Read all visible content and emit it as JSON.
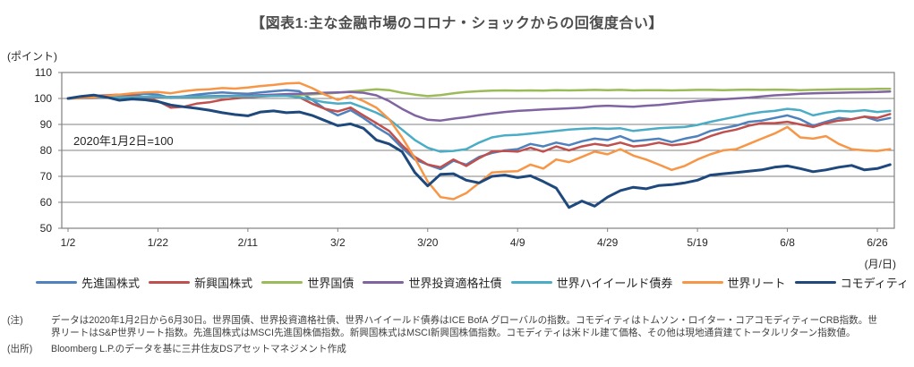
{
  "title": "【図表1:主な金融市場のコロナ・ショックからの回復度合い】",
  "notes": {
    "note_label": "(注)",
    "note_line1": "データは2020年1月2日から6月30日。世界国債、世界投資適格社債、世界ハイイールド債券はICE BofA グローバルの指数。コモディティはトムソン・ロイター・コアコモディティーCRB指数。世",
    "note_line2": "界リートはS&P世界リート指数。先進国株式はMSCI先進国株価指数。新興国株式はMSCI新興国株価指数。コモディティは米ドル建て価格、その他は現地通貨建てトータルリターン指数値。",
    "source_label": "(出所)",
    "source_text": "Bloomberg L.P.のデータを基に三井住友DSアセットマネジメント作成"
  },
  "colors": {
    "grid": "#808080",
    "axis": "#808080",
    "tick_text": "#262626"
  },
  "chart_data": {
    "type": "line",
    "title": "主な金融市場のコロナ・ショックからの回復度合い",
    "annotation": "2020年1月2日=100",
    "y_axis_label": "(ポイント)",
    "x_axis_label": "(月/日)",
    "ylim": [
      50,
      110
    ],
    "y_ticks": [
      50,
      60,
      70,
      80,
      90,
      100,
      110
    ],
    "grid": "horizontal",
    "legend_position": "bottom",
    "x_ticks": [
      "1/2",
      "1/22",
      "2/11",
      "3/2",
      "3/20",
      "4/9",
      "4/29",
      "5/19",
      "6/8",
      "6/26"
    ],
    "x_tick_days": [
      0,
      14,
      28,
      42,
      56,
      70,
      84,
      98,
      112,
      126
    ],
    "x_day_max": 128,
    "sample_step_days": 2,
    "series": [
      {
        "name": "先進国株式",
        "color": "#4F81BD",
        "values": [
          100,
          100.3,
          100.8,
          101,
          101.2,
          101.5,
          101.8,
          101.5,
          100.2,
          100.8,
          101.5,
          102,
          102.3,
          102,
          101.8,
          102.3,
          102.8,
          103.2,
          102.8,
          99.5,
          96,
          93.5,
          95.5,
          92.5,
          89,
          86,
          81,
          76.5,
          74.5,
          72.8,
          76,
          74.5,
          77.5,
          79,
          80,
          80.5,
          82.5,
          81.5,
          83,
          82,
          83.5,
          84.5,
          84,
          85.5,
          83.5,
          84,
          84.5,
          83.2,
          84.5,
          85.5,
          87.5,
          88.5,
          89.5,
          91,
          91.5,
          92.5,
          93.5,
          92,
          89.5,
          91,
          92.5,
          92,
          93,
          91.5,
          92.5
        ]
      },
      {
        "name": "新興国株式",
        "color": "#C0504D",
        "values": [
          100,
          100.5,
          101,
          101.2,
          101.5,
          101.3,
          100.5,
          99,
          96.5,
          96.8,
          98,
          98.5,
          99.5,
          100,
          100.5,
          100.8,
          101,
          101.2,
          100.5,
          98,
          96,
          95,
          96.5,
          93.5,
          90.5,
          87.5,
          82,
          77.5,
          74.5,
          73.5,
          76.5,
          74,
          77,
          79.5,
          79.8,
          79.5,
          81,
          79.5,
          81.5,
          80,
          81.5,
          82.5,
          81.8,
          83,
          81.5,
          82,
          83,
          82,
          82.5,
          83.5,
          85.5,
          87,
          88,
          89.5,
          90.5,
          90.5,
          91,
          90,
          89,
          90.5,
          91.5,
          92,
          93,
          92.5,
          94
        ]
      },
      {
        "name": "世界国債",
        "color": "#9BBB59",
        "values": [
          100,
          100.1,
          100.2,
          100.2,
          100.3,
          100.3,
          100.4,
          100.3,
          100.5,
          100.6,
          100.6,
          100.7,
          100.8,
          100.8,
          100.8,
          101,
          101.1,
          101.2,
          101.3,
          101.6,
          101.9,
          102.2,
          102.7,
          103.1,
          103.5,
          103.2,
          102.2,
          101.5,
          100.9,
          101.3,
          102,
          102.5,
          102.8,
          103,
          103.1,
          103,
          103.1,
          103,
          103.2,
          103.1,
          103.2,
          103.3,
          103.2,
          103.3,
          103.1,
          103.2,
          103.2,
          103.1,
          103.2,
          103.3,
          103.3,
          103.2,
          103.3,
          103.4,
          103.3,
          103.4,
          103.3,
          103.2,
          103.3,
          103.4,
          103.5,
          103.6,
          103.6,
          103.7,
          103.7
        ]
      },
      {
        "name": "世界投資適格社債",
        "color": "#8064A2",
        "values": [
          100,
          100.1,
          100.2,
          100.3,
          100.4,
          100.4,
          100.5,
          100.5,
          100.6,
          100.7,
          100.8,
          100.9,
          101,
          101,
          101.1,
          101.3,
          101.5,
          101.7,
          101.8,
          102,
          102.2,
          102.3,
          102.5,
          102.2,
          101.2,
          99,
          96,
          93.5,
          91.8,
          91.5,
          92.2,
          92.8,
          93.6,
          94.2,
          94.8,
          95.2,
          95.5,
          95.8,
          96,
          96.2,
          96.5,
          97,
          97.2,
          97,
          96.8,
          97.2,
          97.5,
          98,
          98.5,
          99,
          99.3,
          99.7,
          100,
          100.3,
          100.8,
          101.2,
          101.5,
          101.8,
          102,
          102.1,
          102.2,
          102.3,
          102.4,
          102.5,
          102.7
        ]
      },
      {
        "name": "世界ハイイールド債券",
        "color": "#4BACC6",
        "values": [
          100,
          100.2,
          100.4,
          100.5,
          100.5,
          100.6,
          100.7,
          100.8,
          100.5,
          100.6,
          100.7,
          100.8,
          100.8,
          100.9,
          100.8,
          100.9,
          101,
          101,
          100.5,
          99.5,
          98.5,
          98,
          98.3,
          96.5,
          94.5,
          92,
          88,
          84,
          81,
          79.5,
          79.8,
          80.5,
          83,
          85,
          85.8,
          86,
          86.5,
          87,
          87.5,
          88,
          88.3,
          88.5,
          88.3,
          88.5,
          87.5,
          88,
          88.5,
          88.8,
          89,
          89.8,
          91,
          92,
          93,
          94,
          94.8,
          95.2,
          96,
          95.5,
          93.5,
          94.5,
          95.2,
          95,
          95.5,
          94.8,
          95.2
        ]
      },
      {
        "name": "世界リート",
        "color": "#F79646",
        "values": [
          100,
          100.2,
          100.5,
          101,
          101.5,
          102,
          102.3,
          102.5,
          102,
          102.8,
          103.3,
          103.5,
          104,
          103.8,
          104.2,
          104.8,
          105.2,
          105.8,
          106,
          104,
          101.5,
          99.5,
          101,
          99,
          96.5,
          92,
          85,
          77,
          68,
          62,
          61.2,
          63.5,
          67.5,
          71.5,
          71.8,
          72,
          74.5,
          73,
          76.5,
          75.5,
          77.5,
          79.5,
          78.5,
          80.5,
          78,
          76.5,
          74.5,
          72.5,
          74,
          76.5,
          78.5,
          80,
          80.5,
          82.5,
          84.5,
          86.5,
          89,
          85,
          84.5,
          85.5,
          82.5,
          80.5,
          80,
          79.8,
          80.5
        ]
      },
      {
        "name": "コモディティ",
        "color": "#1F497D",
        "values": [
          100,
          100.8,
          101.3,
          100.5,
          99.3,
          99.8,
          99.5,
          98.8,
          97.5,
          96.8,
          96.2,
          95.5,
          94.5,
          93.8,
          93.3,
          94.8,
          95.2,
          94.5,
          94.8,
          93.5,
          91.5,
          89.5,
          90.2,
          88.5,
          84,
          82.5,
          79.5,
          71.5,
          66.3,
          70.8,
          71,
          68.5,
          67.5,
          70,
          70.5,
          69.5,
          70.2,
          68,
          65.5,
          58,
          60.5,
          58.5,
          62,
          64.5,
          65.8,
          65.2,
          66.5,
          66.8,
          67.5,
          68.5,
          70.5,
          71,
          71.5,
          72,
          72.5,
          73.5,
          74,
          73,
          71.8,
          72.5,
          73.5,
          74.2,
          72.5,
          73,
          74.5
        ]
      }
    ]
  }
}
